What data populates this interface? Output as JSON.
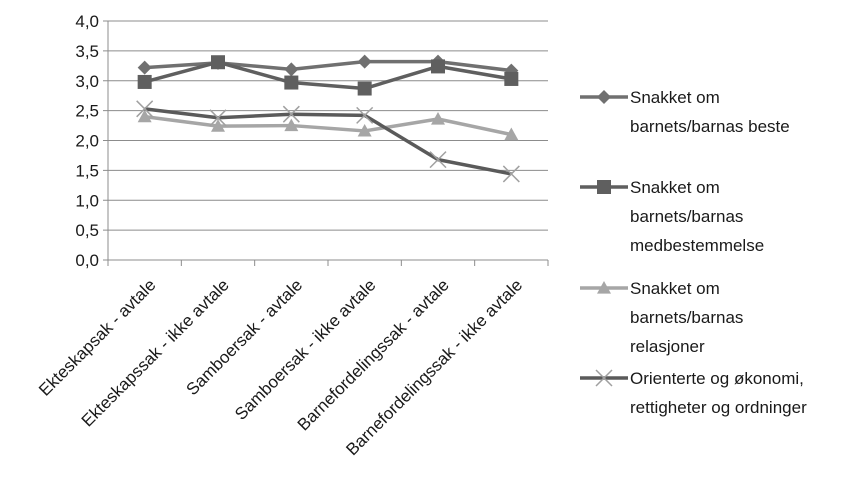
{
  "chart_data": {
    "type": "line",
    "categories": [
      "Ekteskapsak - avtale",
      "Ekteskapssak - ikke avtale",
      "Samboersak - avtale",
      "Samboersak - ikke avtale",
      "Barnefordelingssak - avtale",
      "Barnefordelingssak - ikke avtale"
    ],
    "ylim": [
      0,
      4
    ],
    "yticks": [
      "0,0",
      "0,5",
      "1,0",
      "1,5",
      "2,0",
      "2,5",
      "3,0",
      "3,5",
      "4,0"
    ],
    "grid": true,
    "legend_position": "right",
    "series": [
      {
        "name": "Snakket om barnets/barnas beste",
        "legend_lines": [
          "Snakket om",
          "barnets/barnas beste"
        ],
        "marker": "diamond",
        "color": "#707070",
        "values": [
          3.22,
          3.3,
          3.19,
          3.32,
          3.32,
          3.17
        ]
      },
      {
        "name": "Snakket om barnets/barnas medbestemmelse",
        "legend_lines": [
          "Snakket om",
          "barnets/barnas",
          "medbestemmelse"
        ],
        "marker": "square",
        "color": "#5f5f5f",
        "values": [
          2.98,
          3.31,
          2.97,
          2.87,
          3.24,
          3.03
        ]
      },
      {
        "name": "Snakket om barnets/barnas relasjoner",
        "legend_lines": [
          "Snakket om",
          "barnets/barnas",
          "relasjoner"
        ],
        "marker": "triangle",
        "color": "#a6a6a6",
        "values": [
          2.4,
          2.24,
          2.25,
          2.16,
          2.36,
          2.1
        ]
      },
      {
        "name": "Orienterte og økonomi, rettigheter og ordninger",
        "legend_lines": [
          "Orienterte og økonomi,",
          "rettigheter og ordninger"
        ],
        "marker": "x",
        "color": "#5a5a5a",
        "values": [
          2.53,
          2.38,
          2.44,
          2.42,
          1.68,
          1.44
        ]
      }
    ]
  }
}
